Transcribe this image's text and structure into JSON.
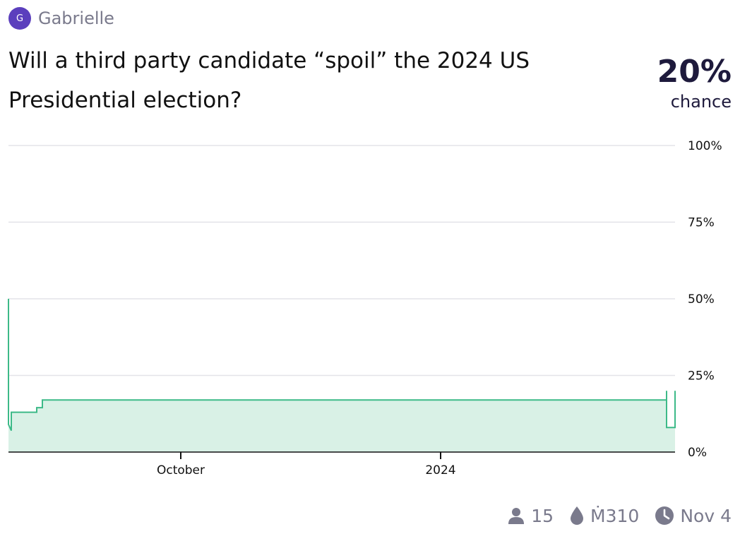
{
  "market": {
    "creator_initial": "G",
    "creator_name": "Gabrielle",
    "question": "Will a third party candidate “spoil” the 2024 US Presidential election?",
    "probability_text": "20%",
    "probability_label": "chance"
  },
  "footer": {
    "traders": "15",
    "volume": "Ṁ310",
    "close_date": "Nov 4"
  },
  "colors": {
    "line": "#3dba88",
    "fill": "#d9f1e6",
    "grid": "#e3e3e8",
    "brand": "#5b3fbd",
    "muted": "#7a7a8c"
  },
  "chart_data": {
    "type": "area",
    "x_unit": "time",
    "ylim": [
      0,
      100
    ],
    "y_ticks": [
      {
        "value": 100,
        "label": "100%"
      },
      {
        "value": 75,
        "label": "75%"
      },
      {
        "value": 50,
        "label": "50%"
      },
      {
        "value": 25,
        "label": "25%"
      },
      {
        "value": 0,
        "label": "0%"
      }
    ],
    "x_ticks": [
      {
        "date": "2023-10-01",
        "label": "October"
      },
      {
        "date": "2024-01-01",
        "label": "2024"
      }
    ],
    "x_range": [
      "2023-08-01",
      "2024-03-24"
    ],
    "grid": true,
    "step": true,
    "points": [
      {
        "x": "2023-08-01",
        "y": 50
      },
      {
        "x": "2023-08-01",
        "y": 9
      },
      {
        "x": "2023-08-02",
        "y": 7
      },
      {
        "x": "2023-08-02",
        "y": 13
      },
      {
        "x": "2023-08-11",
        "y": 13
      },
      {
        "x": "2023-08-11",
        "y": 14.5
      },
      {
        "x": "2023-08-13",
        "y": 14.5
      },
      {
        "x": "2023-08-13",
        "y": 17
      },
      {
        "x": "2024-03-21",
        "y": 17
      },
      {
        "x": "2024-03-21",
        "y": 20
      },
      {
        "x": "2024-03-21",
        "y": 8
      },
      {
        "x": "2024-03-24",
        "y": 8
      },
      {
        "x": "2024-03-24",
        "y": 20
      }
    ]
  }
}
